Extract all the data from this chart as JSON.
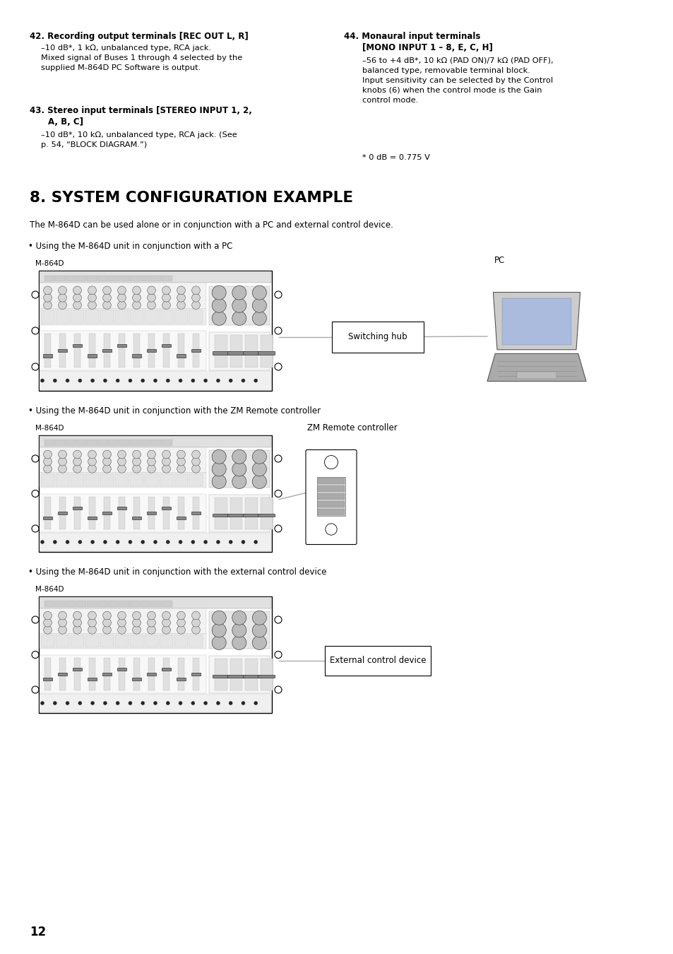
{
  "bg_color": "#ffffff",
  "page_number": "12",
  "section_title": "8. SYSTEM CONFIGURATION EXAMPLE",
  "intro_text": "The M-864D can be used alone or in conjunction with a PC and external control device.",
  "top_sections": [
    {
      "number": "42.",
      "heading_bold": "Recording output terminals [REC OUT L, R]",
      "heading2": "",
      "body": "–10 dB*, 1 kΩ, unbalanced type, RCA jack.\nMixed signal of Buses 1 through 4 selected by the\nsupplied M-864D PC Software is output."
    },
    {
      "number": "43.",
      "heading_bold": "Stereo input terminals [STEREO INPUT 1, 2,",
      "heading2": "A, B, C]",
      "body": "–10 dB*, 10 kΩ, unbalanced type, RCA jack. (See\np. 54, “BLOCK DIAGRAM.”)"
    },
    {
      "number": "44.",
      "heading_bold": "Monaural input terminals",
      "heading2": "[MONO INPUT 1 – 8, E, C, H]",
      "body": "–56 to +4 dB*, 10 kΩ (PAD ON)/7 kΩ (PAD OFF),\nbalanced type, removable terminal block.\nInput sensitivity can be selected by the Control\nknobs (6) when the control mode is the Gain\ncontrol mode."
    }
  ],
  "footnote": "* 0 dB = 0.775 V",
  "scenario1_bullet": "• Using the M-864D unit in conjunction with a PC",
  "scenario2_bullet": "• Using the M-864D unit in conjunction with the ZM Remote controller",
  "scenario3_bullet": "• Using the M-864D unit in conjunction with the external control device",
  "mixer_label": "M-864D",
  "pc_label": "PC",
  "hub_label": "Switching hub",
  "remote_label": "ZM Remote controller",
  "ext_label": "External control device"
}
